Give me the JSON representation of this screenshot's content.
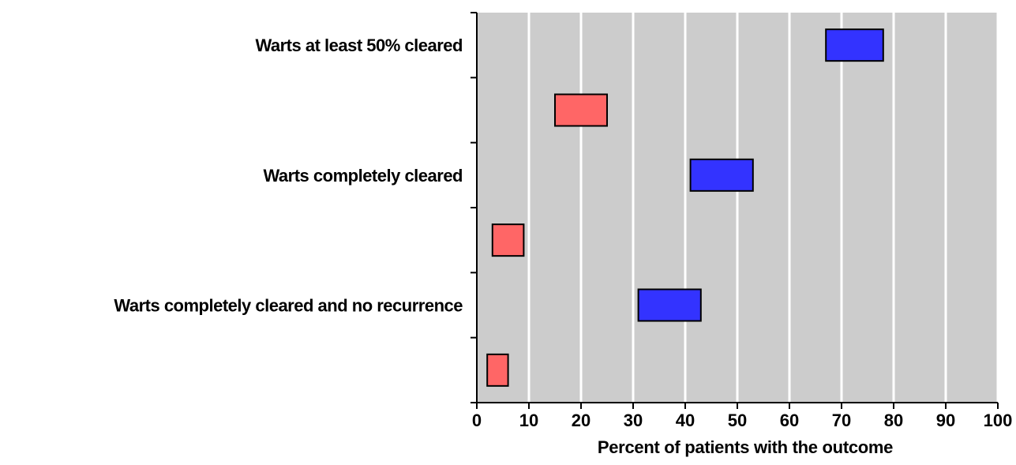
{
  "chart_data": {
    "type": "bar",
    "subtype": "range-bar",
    "title": "",
    "xlabel": "Percent of patients with the outcome",
    "ylabel": "",
    "xlim": [
      0,
      100
    ],
    "xticks": [
      "0",
      "10",
      "20",
      "30",
      "40",
      "50",
      "60",
      "70",
      "80",
      "90",
      "100"
    ],
    "grid": true,
    "categories": [
      "Warts at least 50% cleared",
      "Warts completely cleared",
      "Warts completely cleared and no recurrence"
    ],
    "series": [
      {
        "color": "#3333ff",
        "ranges": [
          [
            67,
            78
          ],
          [
            41,
            53
          ],
          [
            31,
            43
          ]
        ]
      },
      {
        "color": "#ff6666",
        "ranges": [
          [
            15,
            25
          ],
          [
            3,
            9
          ],
          [
            2,
            6
          ]
        ]
      }
    ],
    "colors": {
      "plot_background": "#cccccc",
      "gridline": "#ffffff",
      "bar_outline": "#000000"
    }
  }
}
